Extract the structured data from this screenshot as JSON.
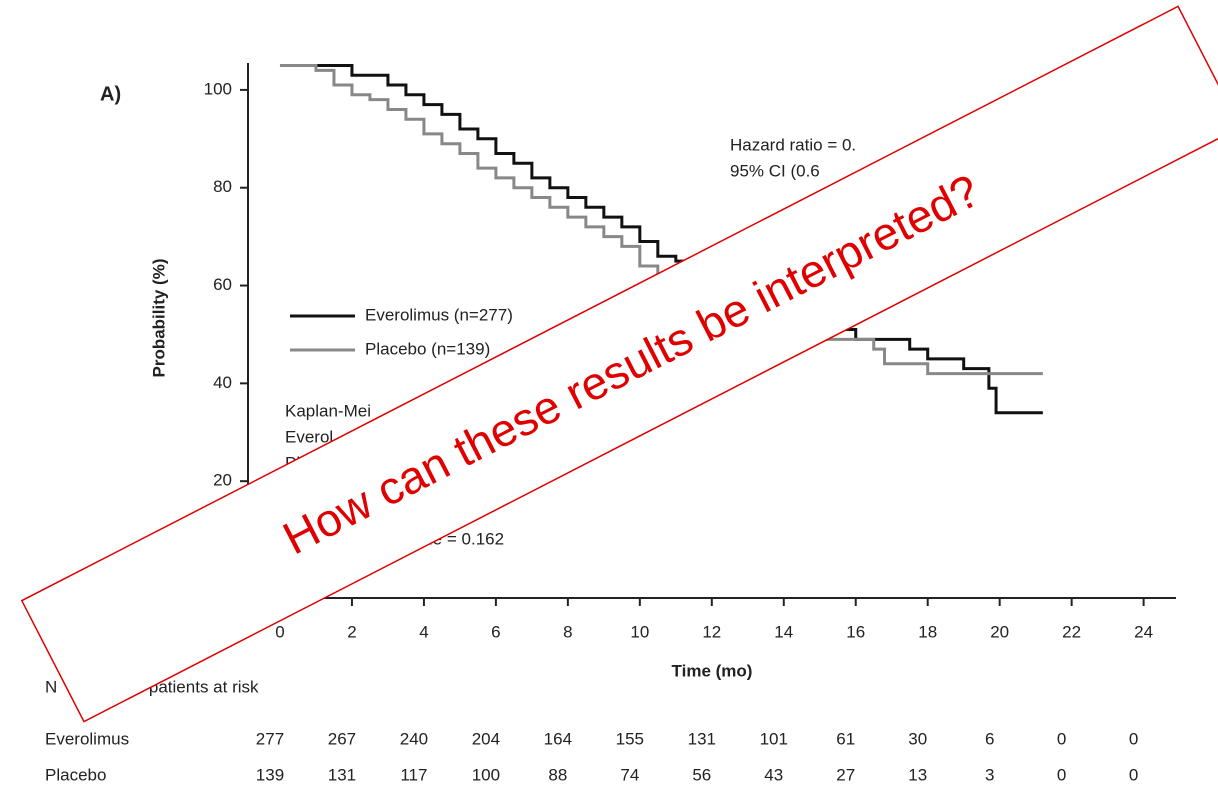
{
  "chart_data": {
    "type": "step",
    "panel_label": "A)",
    "x_label": "Time (mo)",
    "y_label": "Probability (%)",
    "xlim": [
      -1,
      24.9
    ],
    "ylim": [
      -4.5,
      105.5
    ],
    "xticks": [
      0,
      2,
      4,
      6,
      8,
      10,
      12,
      14,
      16,
      18,
      20,
      22,
      24
    ],
    "yticks": [
      20,
      40,
      60,
      80,
      100
    ],
    "series": [
      {
        "name": "Everolimus (n=277)",
        "color": "#111111",
        "x": [
          0,
          1.5,
          2,
          3,
          3.5,
          4,
          4.5,
          5,
          5.5,
          6,
          6.5,
          7,
          7.5,
          8,
          8.5,
          9,
          9.5,
          10,
          10.5,
          11,
          12,
          13,
          14,
          15,
          15.5,
          16,
          17,
          17.5,
          18,
          19,
          19.7,
          19.9,
          21.2
        ],
        "values": [
          105,
          105,
          103,
          101,
          99,
          97,
          95,
          92,
          90,
          87,
          85,
          82,
          80,
          78,
          76,
          74,
          72,
          69,
          66,
          65,
          62,
          58,
          55,
          52,
          51,
          49,
          49,
          47,
          45,
          43,
          39,
          34,
          34
        ]
      },
      {
        "name": "Placebo (n=139)",
        "color": "#888888",
        "x": [
          0,
          1,
          1.5,
          2,
          2.5,
          3,
          3.5,
          4,
          4.5,
          5,
          5.5,
          6,
          6.5,
          7,
          7.5,
          8,
          8.5,
          9,
          9.5,
          10,
          10.5,
          11,
          12,
          13,
          14,
          15,
          16,
          16.5,
          16.8,
          18,
          20,
          21.2
        ],
        "values": [
          105,
          104,
          101,
          99,
          98,
          96,
          94,
          91,
          89,
          87,
          84,
          82,
          80,
          78,
          76,
          74,
          72,
          70,
          68,
          64,
          61,
          60,
          57,
          55,
          51,
          49,
          49,
          47,
          44,
          42,
          42,
          42
        ]
      }
    ],
    "annotations": [
      "Hazard ratio = 0.",
      "95% CI (0.6",
      "Kaplan-Mei",
      "Everol",
      "Pl",
      "alue = 0.162"
    ],
    "risk_table": {
      "title_parts": [
        "N",
        "of patients at risk"
      ],
      "rows": [
        {
          "name": "Everolimus",
          "values": [
            277,
            267,
            240,
            204,
            164,
            155,
            131,
            101,
            61,
            30,
            6,
            0,
            0
          ]
        },
        {
          "name": "Placebo",
          "values": [
            139,
            131,
            117,
            100,
            88,
            74,
            56,
            43,
            27,
            13,
            3,
            0,
            0
          ]
        }
      ]
    },
    "overlay_text": "How can these results be interpreted?"
  }
}
